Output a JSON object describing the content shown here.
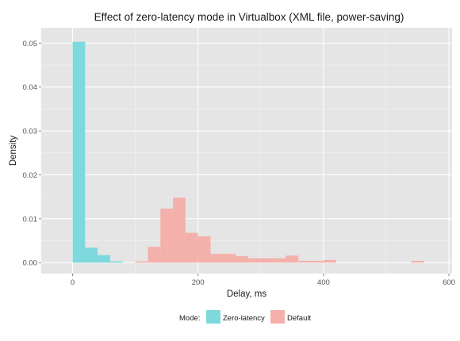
{
  "chart_data": {
    "type": "bar",
    "title": "Effect of zero-latency mode in Virtualbox (XML file, power-saving)",
    "xlabel": "Delay, ms",
    "ylabel": "Density",
    "xlim": [
      -50,
      605
    ],
    "ylim": [
      -0.0025,
      0.0535
    ],
    "x_ticks": [
      0,
      200,
      400,
      600
    ],
    "x_tick_labels": [
      "0",
      "200",
      "400",
      "600"
    ],
    "y_ticks": [
      0.0,
      0.01,
      0.02,
      0.03,
      0.04,
      0.05
    ],
    "y_tick_labels": [
      "0.00",
      "0.01",
      "0.02",
      "0.03",
      "0.04",
      "0.05"
    ],
    "grid": true,
    "legend": {
      "position": "bottom",
      "title": "Mode:",
      "entries": [
        "Zero-latency",
        "Default"
      ]
    },
    "colors": {
      "panel_background": "#e5e5e5",
      "grid_major": "#ffffff",
      "grid_minor": "#f2f2f2",
      "Zero-latency": "#7dd9dd",
      "Default": "#f4b0ab"
    },
    "bin_width": 20,
    "series": [
      {
        "name": "Zero-latency",
        "bins": [
          {
            "x0": 0,
            "x1": 20,
            "density": 0.0503
          },
          {
            "x0": 20,
            "x1": 40,
            "density": 0.0034
          },
          {
            "x0": 40,
            "x1": 60,
            "density": 0.0017
          },
          {
            "x0": 60,
            "x1": 80,
            "density": 0.0003
          }
        ]
      },
      {
        "name": "Default",
        "bins": [
          {
            "x0": 100,
            "x1": 120,
            "density": 0.0003
          },
          {
            "x0": 120,
            "x1": 140,
            "density": 0.0036
          },
          {
            "x0": 140,
            "x1": 160,
            "density": 0.0123
          },
          {
            "x0": 160,
            "x1": 180,
            "density": 0.0148
          },
          {
            "x0": 180,
            "x1": 200,
            "density": 0.0068
          },
          {
            "x0": 200,
            "x1": 220,
            "density": 0.006
          },
          {
            "x0": 220,
            "x1": 240,
            "density": 0.002
          },
          {
            "x0": 240,
            "x1": 260,
            "density": 0.002
          },
          {
            "x0": 260,
            "x1": 280,
            "density": 0.0015
          },
          {
            "x0": 280,
            "x1": 300,
            "density": 0.001
          },
          {
            "x0": 300,
            "x1": 320,
            "density": 0.001
          },
          {
            "x0": 320,
            "x1": 340,
            "density": 0.001
          },
          {
            "x0": 340,
            "x1": 360,
            "density": 0.0016
          },
          {
            "x0": 360,
            "x1": 380,
            "density": 0.0004
          },
          {
            "x0": 380,
            "x1": 400,
            "density": 0.0004
          },
          {
            "x0": 400,
            "x1": 420,
            "density": 0.0006
          },
          {
            "x0": 540,
            "x1": 560,
            "density": 0.0004
          }
        ]
      }
    ]
  }
}
